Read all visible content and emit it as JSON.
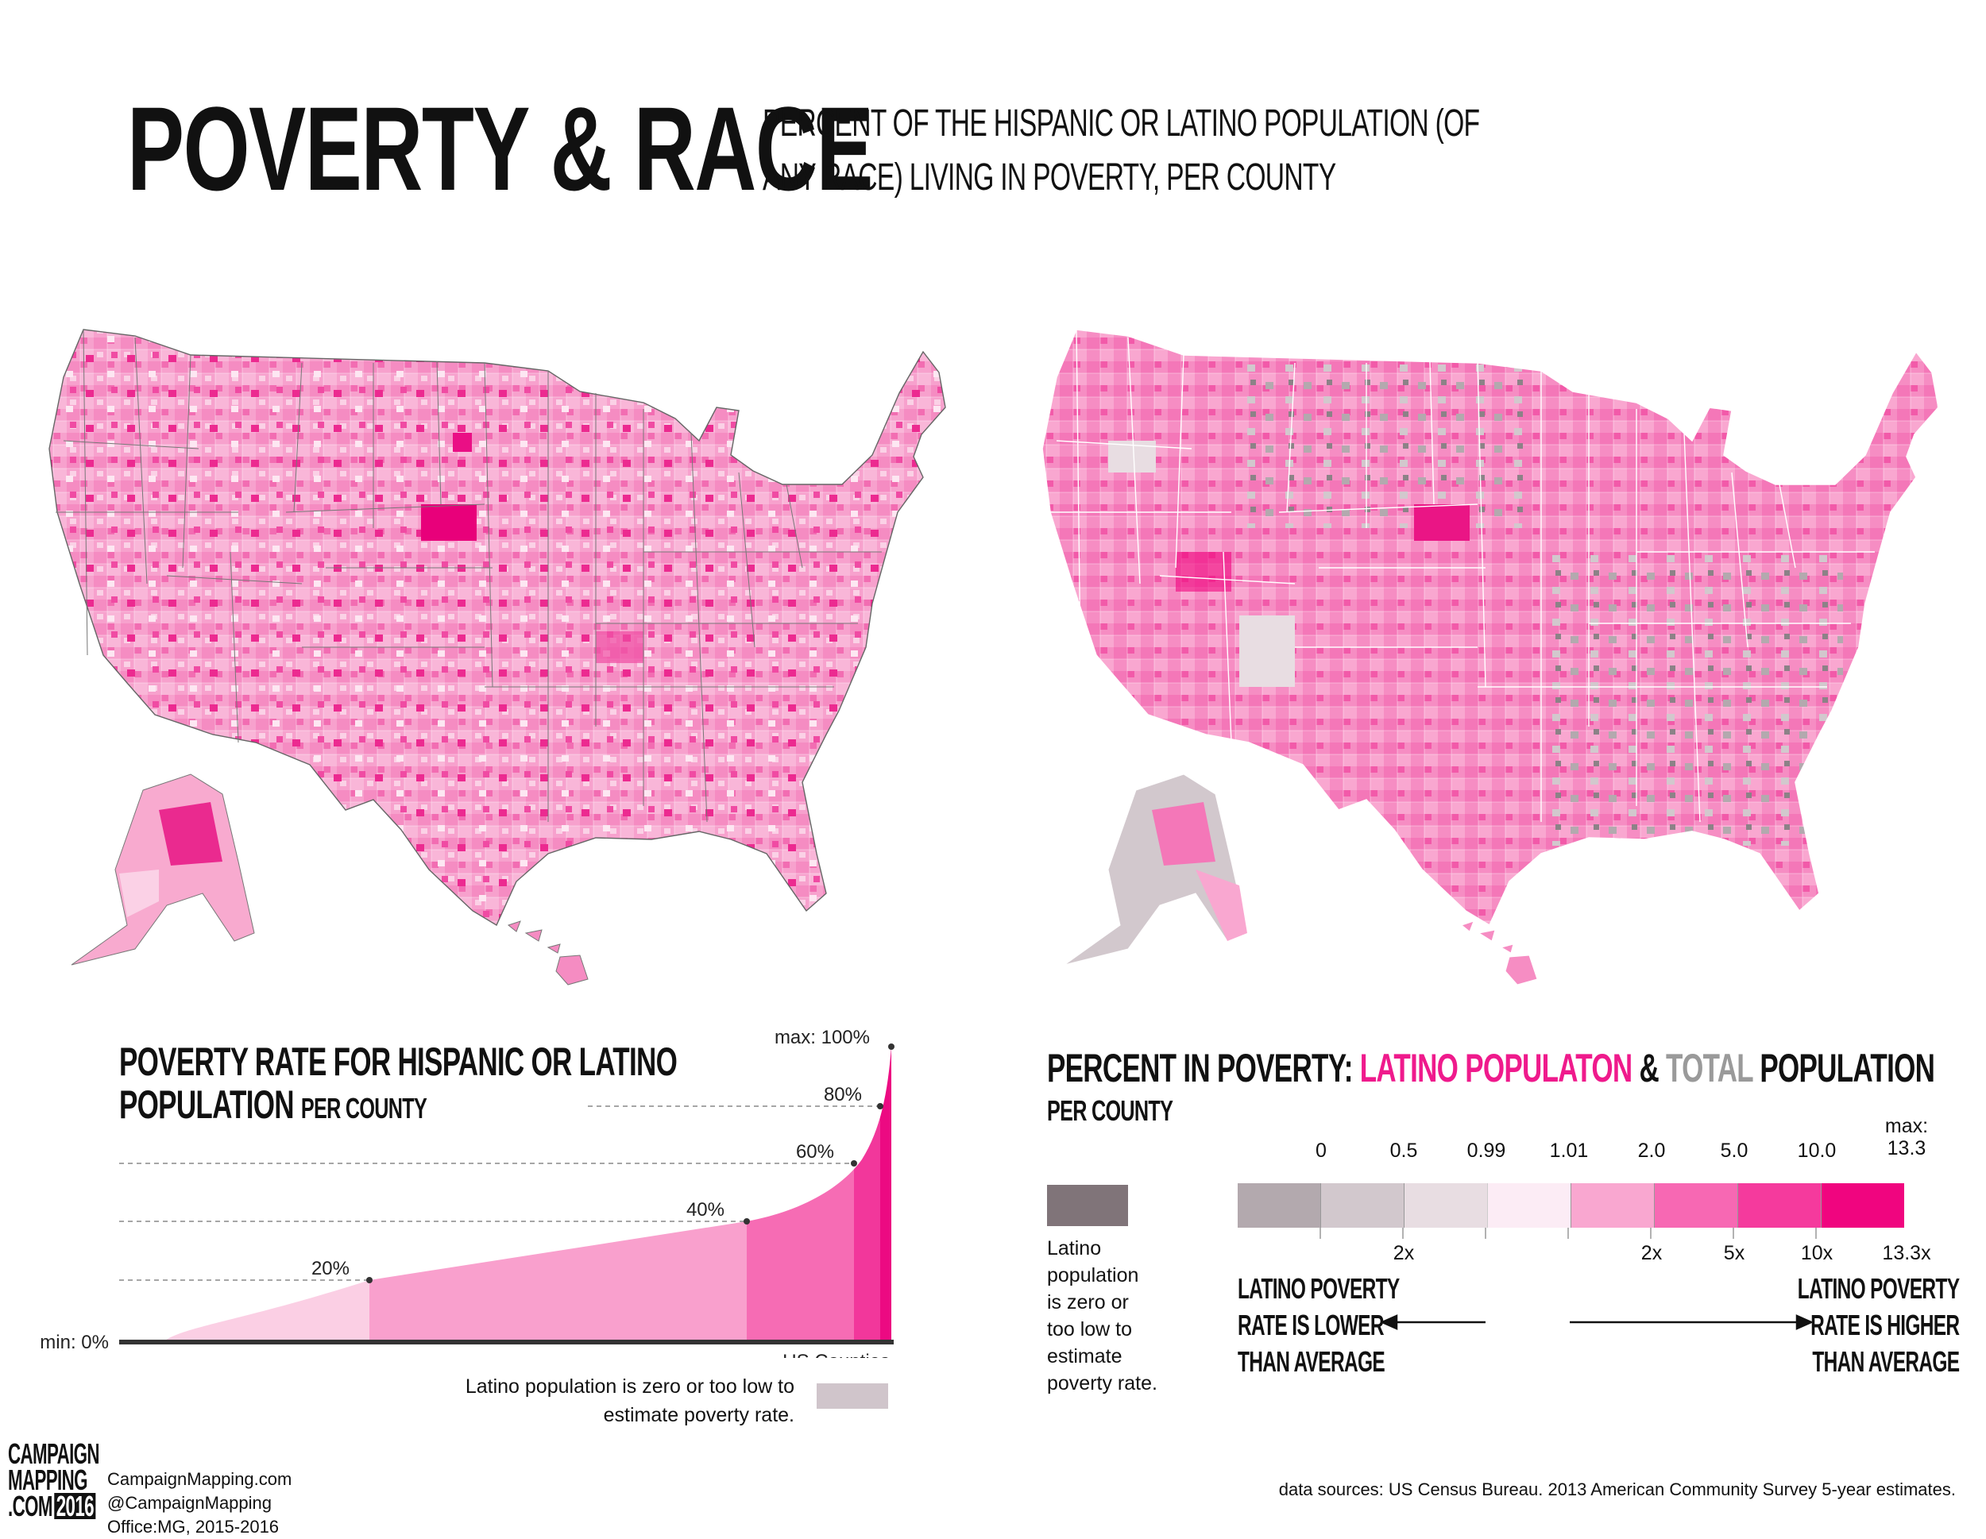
{
  "header": {
    "title": "POVERTY & RACE",
    "subtitle_line1": "PERCENT OF THE HISPANIC OR LATINO POPULATION (OF",
    "subtitle_line2": "ANY RACE) LIVING IN POVERTY, PER COUNTY"
  },
  "left_chart": {
    "title_line1": "POVERTY RATE FOR HISPANIC OR LATINO",
    "title_line2": "POPULATION",
    "title_small": "PER COUNTY",
    "x_axis_label": "US Counties",
    "min_label": "min: 0%",
    "max_label": "max: 100%",
    "pct_labels": [
      "20%",
      "40%",
      "60%",
      "80%"
    ],
    "note_line1": "Latino population is zero or too low to",
    "note_line2": "estimate poverty rate."
  },
  "right_legend": {
    "title_part1": "PERCENT IN POVERTY: ",
    "title_part2": "LATINO POPULATON",
    "title_part3": " & ",
    "title_part4": "TOTAL",
    "title_part5": " POPULATION",
    "subtitle": "PER COUNTY",
    "ratio_labels": [
      "0",
      "0.5",
      "0.99",
      "1.01",
      "2.0",
      "5.0",
      "10.0"
    ],
    "max_label_line1": "max:",
    "max_label_line2": "13.3",
    "multiplier_labels": [
      "2x",
      "2x",
      "5x",
      "10x",
      "13.3x"
    ],
    "na_label_lines": [
      "Latino",
      "population",
      "is zero or",
      "too low to",
      "estimate",
      "poverty rate."
    ],
    "lower_lines": [
      "LATINO POVERTY",
      "RATE IS LOWER",
      "THAN AVERAGE"
    ],
    "higher_lines": [
      "LATINO POVERTY",
      "RATE IS HIGHER",
      "THAN AVERAGE"
    ]
  },
  "colors": {
    "accent": "#ef1a8c",
    "na_grey": "#d0c5cb",
    "na_dark": "#807479",
    "scale": [
      "#b3a9ae",
      "#d2c8cd",
      "#e8dde2",
      "#fcecf5",
      "#f9a7d0",
      "#f768b3",
      "#f53a9d",
      "#f0057f"
    ]
  },
  "footer": {
    "logo_lines": [
      "CAMPAIGN",
      "MAPPING",
      ".COM"
    ],
    "logo_year": "2016",
    "site": "CampaignMapping.com",
    "handle": "@CampaignMapping",
    "office": "Office:MG, 2015-2016",
    "source": "data sources: US Census Bureau. 2013 American Community Survey 5-year estimates."
  }
}
